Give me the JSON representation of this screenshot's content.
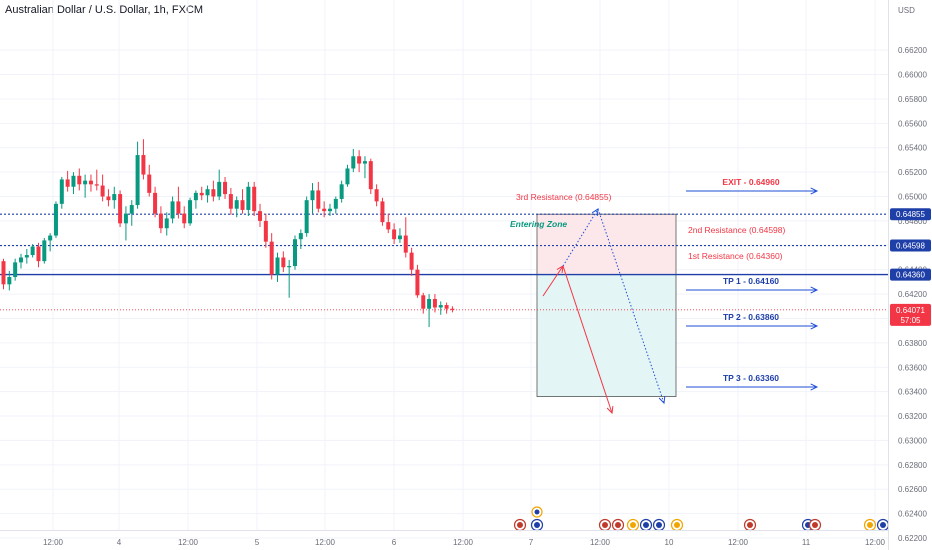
{
  "header": {
    "title": "Australian Dollar / U.S. Dollar, 1h, FXCM",
    "currency": "USD"
  },
  "chart_data": {
    "type": "candlestick",
    "title": "Australian Dollar / U.S. Dollar, 1h, FXCM",
    "ylabel": "USD",
    "ylim": [
      0.6214,
      0.6657
    ],
    "y_ticks": [
      "0.66200",
      "0.66000",
      "0.65800",
      "0.65600",
      "0.65400",
      "0.65200",
      "0.65000",
      "0.64800",
      "0.64600",
      "0.64400",
      "0.64200",
      "0.64000",
      "0.63800",
      "0.63600",
      "0.63400",
      "0.63200",
      "0.63000",
      "0.62800",
      "0.62600",
      "0.62400",
      "0.62200"
    ],
    "x_ticks": [
      "12:00",
      "4",
      "12:00",
      "5",
      "12:00",
      "6",
      "12:00",
      "7",
      "12:00",
      "10",
      "12:00",
      "11",
      "12:00"
    ],
    "last_price": "0.64071",
    "countdown": "57:05",
    "candles_up_color": "#089981",
    "candles_down_color": "#f23645",
    "candles": [
      [
        0.6447,
        0.6449,
        0.6424,
        0.6428
      ],
      [
        0.6428,
        0.6439,
        0.6423,
        0.6434
      ],
      [
        0.6434,
        0.6449,
        0.6431,
        0.6446
      ],
      [
        0.6446,
        0.6453,
        0.6441,
        0.645
      ],
      [
        0.645,
        0.6457,
        0.6445,
        0.6452
      ],
      [
        0.6452,
        0.6461,
        0.645,
        0.6459
      ],
      [
        0.6459,
        0.6462,
        0.6442,
        0.6447
      ],
      [
        0.6447,
        0.6466,
        0.6445,
        0.6464
      ],
      [
        0.6464,
        0.647,
        0.6455,
        0.6468
      ],
      [
        0.6468,
        0.6496,
        0.6466,
        0.6494
      ],
      [
        0.6494,
        0.6516,
        0.649,
        0.6514
      ],
      [
        0.6514,
        0.6521,
        0.6504,
        0.6508
      ],
      [
        0.6508,
        0.652,
        0.6502,
        0.6517
      ],
      [
        0.6517,
        0.6523,
        0.6505,
        0.651
      ],
      [
        0.651,
        0.6518,
        0.6499,
        0.6513
      ],
      [
        0.6513,
        0.6518,
        0.6504,
        0.651
      ],
      [
        0.651,
        0.6522,
        0.6505,
        0.6509
      ],
      [
        0.6509,
        0.6518,
        0.6496,
        0.65
      ],
      [
        0.65,
        0.6506,
        0.6492,
        0.6497
      ],
      [
        0.6497,
        0.6508,
        0.649,
        0.6502
      ],
      [
        0.6502,
        0.6505,
        0.6475,
        0.6478
      ],
      [
        0.6478,
        0.6492,
        0.6464,
        0.6486
      ],
      [
        0.6486,
        0.6497,
        0.6476,
        0.6493
      ],
      [
        0.6493,
        0.6545,
        0.649,
        0.6534
      ],
      [
        0.6534,
        0.6547,
        0.6514,
        0.6518
      ],
      [
        0.6518,
        0.6526,
        0.65,
        0.6503
      ],
      [
        0.6503,
        0.6508,
        0.6483,
        0.6486
      ],
      [
        0.6486,
        0.6492,
        0.647,
        0.6474
      ],
      [
        0.6474,
        0.6487,
        0.6468,
        0.6482
      ],
      [
        0.6482,
        0.65,
        0.6478,
        0.6496
      ],
      [
        0.6496,
        0.6508,
        0.6482,
        0.6486
      ],
      [
        0.6486,
        0.6492,
        0.6474,
        0.6478
      ],
      [
        0.6478,
        0.6499,
        0.6476,
        0.6497
      ],
      [
        0.6497,
        0.6505,
        0.649,
        0.6503
      ],
      [
        0.6503,
        0.6508,
        0.6497,
        0.6501
      ],
      [
        0.6501,
        0.6509,
        0.6495,
        0.6506
      ],
      [
        0.6506,
        0.6513,
        0.6496,
        0.65
      ],
      [
        0.65,
        0.6522,
        0.6497,
        0.6512
      ],
      [
        0.6512,
        0.6516,
        0.6498,
        0.6502
      ],
      [
        0.6502,
        0.6507,
        0.6485,
        0.649
      ],
      [
        0.649,
        0.65,
        0.6483,
        0.6497
      ],
      [
        0.6497,
        0.6506,
        0.6486,
        0.6489
      ],
      [
        0.6489,
        0.6512,
        0.6484,
        0.6508
      ],
      [
        0.6508,
        0.6512,
        0.6484,
        0.6488
      ],
      [
        0.6488,
        0.6494,
        0.6475,
        0.648
      ],
      [
        0.648,
        0.6486,
        0.6458,
        0.6463
      ],
      [
        0.6463,
        0.647,
        0.6432,
        0.6436
      ],
      [
        0.6436,
        0.6454,
        0.643,
        0.645
      ],
      [
        0.645,
        0.6455,
        0.6438,
        0.6442
      ],
      [
        0.6442,
        0.6448,
        0.6417,
        0.6443
      ],
      [
        0.6443,
        0.6468,
        0.644,
        0.6465
      ],
      [
        0.6465,
        0.6473,
        0.6457,
        0.647
      ],
      [
        0.647,
        0.65,
        0.6467,
        0.6497
      ],
      [
        0.6497,
        0.6511,
        0.6486,
        0.6505
      ],
      [
        0.6505,
        0.6512,
        0.6487,
        0.649
      ],
      [
        0.649,
        0.6496,
        0.6483,
        0.6488
      ],
      [
        0.6488,
        0.6494,
        0.6484,
        0.649
      ],
      [
        0.649,
        0.65,
        0.6486,
        0.6498
      ],
      [
        0.6498,
        0.6513,
        0.6495,
        0.651
      ],
      [
        0.651,
        0.6526,
        0.6508,
        0.6523
      ],
      [
        0.6523,
        0.6539,
        0.652,
        0.6533
      ],
      [
        0.6533,
        0.6538,
        0.652,
        0.6527
      ],
      [
        0.6527,
        0.6533,
        0.6515,
        0.6529
      ],
      [
        0.6529,
        0.6531,
        0.6502,
        0.6506
      ],
      [
        0.6506,
        0.651,
        0.6492,
        0.6496
      ],
      [
        0.6496,
        0.6499,
        0.6476,
        0.6479
      ],
      [
        0.6479,
        0.6486,
        0.647,
        0.6473
      ],
      [
        0.6473,
        0.6478,
        0.6461,
        0.6465
      ],
      [
        0.6465,
        0.6474,
        0.6462,
        0.6468
      ],
      [
        0.6468,
        0.6483,
        0.645,
        0.6454
      ],
      [
        0.6454,
        0.6458,
        0.6435,
        0.644
      ],
      [
        0.644,
        0.6444,
        0.6417,
        0.6419
      ],
      [
        0.6419,
        0.6421,
        0.6404,
        0.6408
      ],
      [
        0.6408,
        0.642,
        0.6393,
        0.6416
      ],
      [
        0.6416,
        0.642,
        0.6405,
        0.6409
      ],
      [
        0.6409,
        0.6414,
        0.6403,
        0.6411
      ],
      [
        0.6411,
        0.6413,
        0.6404,
        0.6408
      ],
      [
        0.6408,
        0.641,
        0.6405,
        0.6407
      ]
    ],
    "levels": [
      {
        "name": "1st Resistance",
        "value": 0.6436,
        "label": "0.64360",
        "style": "solid",
        "color": "#1e3fa8"
      },
      {
        "name": "2nd Resistance",
        "value": 0.64598,
        "label": "0.64598",
        "style": "dotted",
        "color": "#1e3fa8"
      },
      {
        "name": "3rd Resistance",
        "value": 0.64855,
        "label": "0.64855",
        "style": "dotted",
        "color": "#1e3fa8"
      }
    ],
    "annotations": {
      "resistance_3": "3rd Resistance (0.64855)",
      "resistance_2": "2nd Resistance (0.64598)",
      "resistance_1": "1st Resistance (0.64360)",
      "entering_zone": "Entering Zone",
      "exit": "EXIT - 0.64960",
      "tp1": "TP 1 - 0.64160",
      "tp2": "TP 2 - 0.63860",
      "tp3": "TP 3 - 0.63360"
    },
    "colors": {
      "level_line": "#1e3fa8",
      "last_price": "#f23645",
      "exit_text": "#f23645",
      "resistance_text": "#f23645",
      "tp_text": "#1e3fa8",
      "arrow": "#1e4fd6",
      "entering_zone_text": "#089981",
      "risk_zone": "#fce8ea",
      "reward_zone": "#e4f5f6"
    }
  }
}
